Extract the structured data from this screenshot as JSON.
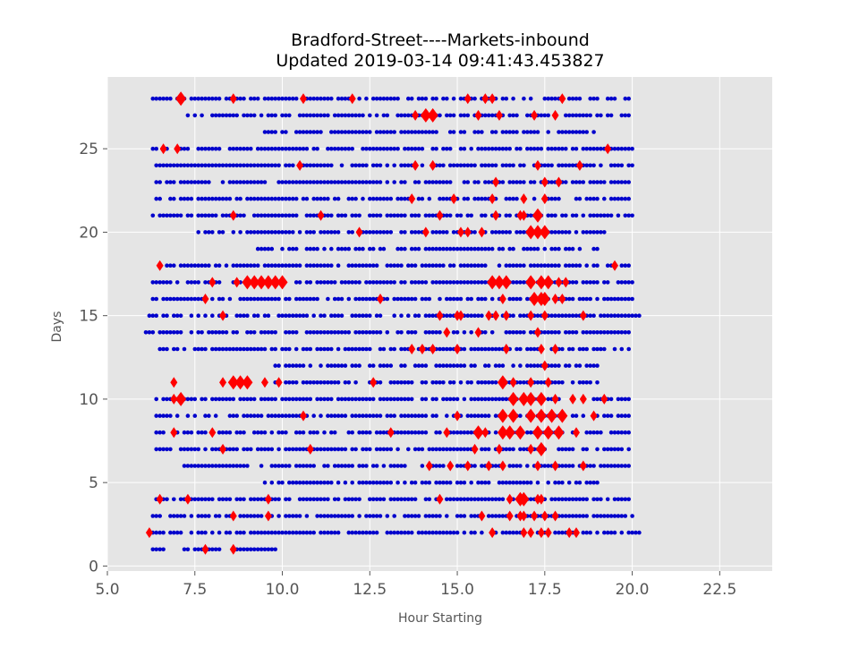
{
  "chart_data": {
    "type": "scatter",
    "title": "Bradford-Street----Markets-inbound",
    "subtitle": "Updated 2019-03-14 09:41:43.453827",
    "xlabel": "Hour Starting",
    "ylabel": "Days",
    "xlim": [
      5.0,
      24.0
    ],
    "ylim": [
      -0.3,
      29.3
    ],
    "xticks": [
      "5.0",
      "7.5",
      "10.0",
      "12.5",
      "15.0",
      "17.5",
      "20.0",
      "22.5"
    ],
    "yticks": [
      "0",
      "5",
      "10",
      "15",
      "20",
      "25"
    ],
    "grid": true,
    "background": "#e5e5e5",
    "colors": {
      "normal": "#0000cc",
      "highlight": "#ff0000"
    },
    "series": [
      {
        "marker": "circle",
        "color": "#0000cc",
        "rows": [
          {
            "day": 28,
            "start": 6.3,
            "end": 19.9
          },
          {
            "day": 27,
            "start": 7.3,
            "end": 19.9
          },
          {
            "day": 26,
            "start": 9.5,
            "end": 18.9
          },
          {
            "day": 25,
            "start": 6.3,
            "end": 20.0
          },
          {
            "day": 24,
            "start": 6.4,
            "end": 20.0
          },
          {
            "day": 23,
            "start": 6.4,
            "end": 19.9
          },
          {
            "day": 22,
            "start": 6.4,
            "end": 19.9
          },
          {
            "day": 21,
            "start": 6.3,
            "end": 20.0
          },
          {
            "day": 20,
            "start": 7.6,
            "end": 19.2
          },
          {
            "day": 19,
            "start": 9.3,
            "end": 19.0
          },
          {
            "day": 18,
            "start": 6.5,
            "end": 19.9
          },
          {
            "day": 17,
            "start": 6.3,
            "end": 20.0
          },
          {
            "day": 16,
            "start": 6.3,
            "end": 20.0
          },
          {
            "day": 15,
            "start": 6.2,
            "end": 20.2
          },
          {
            "day": 14,
            "start": 6.1,
            "end": 19.9
          },
          {
            "day": 13,
            "start": 6.5,
            "end": 19.9
          },
          {
            "day": 12,
            "start": 9.8,
            "end": 19.0
          },
          {
            "day": 11,
            "start": 9.8,
            "end": 19.0
          },
          {
            "day": 10,
            "start": 6.4,
            "end": 19.9
          },
          {
            "day": 9,
            "start": 6.4,
            "end": 19.9
          },
          {
            "day": 8,
            "start": 6.4,
            "end": 19.9
          },
          {
            "day": 7,
            "start": 6.4,
            "end": 19.9
          },
          {
            "day": 6,
            "start": 7.2,
            "end": 19.9
          },
          {
            "day": 5,
            "start": 9.5,
            "end": 19.0
          },
          {
            "day": 4,
            "start": 6.4,
            "end": 19.9
          },
          {
            "day": 3,
            "start": 6.3,
            "end": 20.0
          },
          {
            "day": 2,
            "start": 6.2,
            "end": 20.2
          },
          {
            "day": 1,
            "start": 6.3,
            "end": 9.8
          }
        ]
      },
      {
        "marker": "diamond",
        "color": "#ff0000",
        "points": [
          [
            7.1,
            28,
            2
          ],
          [
            8.6,
            28,
            1
          ],
          [
            10.6,
            28,
            1
          ],
          [
            12.0,
            28,
            1
          ],
          [
            15.3,
            28,
            1
          ],
          [
            15.8,
            28,
            1
          ],
          [
            16.0,
            28,
            1
          ],
          [
            18.0,
            28,
            1
          ],
          [
            13.8,
            27,
            1
          ],
          [
            14.1,
            27,
            2
          ],
          [
            14.3,
            27,
            2
          ],
          [
            15.6,
            27,
            1
          ],
          [
            16.2,
            27,
            1
          ],
          [
            17.2,
            27,
            1
          ],
          [
            17.8,
            27,
            1
          ],
          [
            6.6,
            25,
            1
          ],
          [
            7.0,
            25,
            1
          ],
          [
            19.3,
            25,
            1
          ],
          [
            10.5,
            24,
            1
          ],
          [
            13.8,
            24,
            1
          ],
          [
            14.3,
            24,
            1
          ],
          [
            17.3,
            24,
            1
          ],
          [
            18.5,
            24,
            1
          ],
          [
            16.1,
            23,
            1
          ],
          [
            17.5,
            23,
            1
          ],
          [
            17.9,
            23,
            1
          ],
          [
            13.7,
            22,
            1
          ],
          [
            14.9,
            22,
            1
          ],
          [
            16.0,
            22,
            1
          ],
          [
            16.9,
            22,
            1
          ],
          [
            17.5,
            22,
            1
          ],
          [
            8.6,
            21,
            1
          ],
          [
            11.1,
            21,
            1
          ],
          [
            14.5,
            21,
            1
          ],
          [
            16.1,
            21,
            1
          ],
          [
            16.8,
            21,
            1
          ],
          [
            16.9,
            21,
            1
          ],
          [
            17.3,
            21,
            2
          ],
          [
            12.2,
            20,
            1
          ],
          [
            14.1,
            20,
            1
          ],
          [
            15.1,
            20,
            1
          ],
          [
            15.3,
            20,
            1
          ],
          [
            15.7,
            20,
            1
          ],
          [
            17.1,
            20,
            2
          ],
          [
            17.3,
            20,
            2
          ],
          [
            17.5,
            20,
            2
          ],
          [
            6.5,
            18,
            1
          ],
          [
            19.5,
            18,
            1
          ],
          [
            8.0,
            17,
            1
          ],
          [
            8.7,
            17,
            1
          ],
          [
            9.0,
            17,
            2
          ],
          [
            9.2,
            17,
            2
          ],
          [
            9.4,
            17,
            2
          ],
          [
            9.6,
            17,
            2
          ],
          [
            9.8,
            17,
            2
          ],
          [
            10.0,
            17,
            2
          ],
          [
            16.0,
            17,
            2
          ],
          [
            16.2,
            17,
            2
          ],
          [
            16.4,
            17,
            2
          ],
          [
            17.1,
            17,
            2
          ],
          [
            17.4,
            17,
            2
          ],
          [
            17.6,
            17,
            2
          ],
          [
            17.9,
            17,
            1
          ],
          [
            18.1,
            17,
            1
          ],
          [
            7.8,
            16,
            1
          ],
          [
            12.8,
            16,
            1
          ],
          [
            16.3,
            16,
            1
          ],
          [
            17.2,
            16,
            2
          ],
          [
            17.4,
            16,
            2
          ],
          [
            17.5,
            16,
            2
          ],
          [
            17.8,
            16,
            1
          ],
          [
            18.0,
            16,
            1
          ],
          [
            8.3,
            15,
            1
          ],
          [
            14.5,
            15,
            1
          ],
          [
            15.0,
            15,
            1
          ],
          [
            15.1,
            15,
            1
          ],
          [
            15.9,
            15,
            1
          ],
          [
            16.1,
            15,
            1
          ],
          [
            16.4,
            15,
            1
          ],
          [
            17.1,
            15,
            1
          ],
          [
            17.5,
            15,
            1
          ],
          [
            18.6,
            15,
            1
          ],
          [
            14.7,
            14,
            1
          ],
          [
            15.6,
            14,
            1
          ],
          [
            17.3,
            14,
            1
          ],
          [
            13.7,
            13,
            1
          ],
          [
            14.0,
            13,
            1
          ],
          [
            14.3,
            13,
            1
          ],
          [
            15.0,
            13,
            1
          ],
          [
            16.4,
            13,
            1
          ],
          [
            17.4,
            13,
            1
          ],
          [
            17.8,
            13,
            1
          ],
          [
            17.5,
            12,
            1
          ],
          [
            6.9,
            11,
            1
          ],
          [
            8.3,
            11,
            1
          ],
          [
            8.6,
            11,
            2
          ],
          [
            8.8,
            11,
            2
          ],
          [
            9.0,
            11,
            2
          ],
          [
            9.5,
            11,
            1
          ],
          [
            9.9,
            11,
            1
          ],
          [
            12.6,
            11,
            1
          ],
          [
            16.3,
            11,
            2
          ],
          [
            16.6,
            11,
            1
          ],
          [
            17.1,
            11,
            1
          ],
          [
            17.6,
            11,
            1
          ],
          [
            6.9,
            10,
            1
          ],
          [
            7.1,
            10,
            2
          ],
          [
            16.6,
            10,
            2
          ],
          [
            16.9,
            10,
            2
          ],
          [
            17.1,
            10,
            2
          ],
          [
            17.4,
            10,
            2
          ],
          [
            17.8,
            10,
            1
          ],
          [
            18.3,
            10,
            1
          ],
          [
            18.6,
            10,
            1
          ],
          [
            19.2,
            10,
            1
          ],
          [
            10.6,
            9,
            1
          ],
          [
            15.0,
            9,
            1
          ],
          [
            16.3,
            9,
            2
          ],
          [
            16.6,
            9,
            2
          ],
          [
            17.1,
            9,
            2
          ],
          [
            17.4,
            9,
            2
          ],
          [
            17.7,
            9,
            2
          ],
          [
            18.0,
            9,
            2
          ],
          [
            18.9,
            9,
            1
          ],
          [
            6.9,
            8,
            1
          ],
          [
            8.0,
            8,
            1
          ],
          [
            13.1,
            8,
            1
          ],
          [
            14.7,
            8,
            1
          ],
          [
            15.6,
            8,
            2
          ],
          [
            15.8,
            8,
            1
          ],
          [
            16.3,
            8,
            2
          ],
          [
            16.5,
            8,
            2
          ],
          [
            16.8,
            8,
            2
          ],
          [
            17.3,
            8,
            2
          ],
          [
            17.6,
            8,
            2
          ],
          [
            17.9,
            8,
            2
          ],
          [
            18.4,
            8,
            1
          ],
          [
            8.3,
            7,
            1
          ],
          [
            10.8,
            7,
            1
          ],
          [
            15.5,
            7,
            1
          ],
          [
            16.2,
            7,
            1
          ],
          [
            17.1,
            7,
            1
          ],
          [
            17.4,
            7,
            2
          ],
          [
            14.2,
            6,
            1
          ],
          [
            14.8,
            6,
            1
          ],
          [
            15.3,
            6,
            1
          ],
          [
            15.9,
            6,
            1
          ],
          [
            16.3,
            6,
            1
          ],
          [
            17.3,
            6,
            1
          ],
          [
            17.8,
            6,
            1
          ],
          [
            18.6,
            6,
            1
          ],
          [
            6.5,
            4,
            1
          ],
          [
            7.3,
            4,
            1
          ],
          [
            9.6,
            4,
            1
          ],
          [
            14.5,
            4,
            1
          ],
          [
            16.5,
            4,
            1
          ],
          [
            16.8,
            4,
            2
          ],
          [
            16.9,
            4,
            2
          ],
          [
            17.3,
            4,
            1
          ],
          [
            17.4,
            4,
            1
          ],
          [
            8.6,
            3,
            1
          ],
          [
            9.6,
            3,
            1
          ],
          [
            15.7,
            3,
            1
          ],
          [
            16.5,
            3,
            1
          ],
          [
            16.8,
            3,
            1
          ],
          [
            16.9,
            3,
            1
          ],
          [
            17.2,
            3,
            1
          ],
          [
            17.5,
            3,
            1
          ],
          [
            17.8,
            3,
            1
          ],
          [
            6.2,
            2,
            1
          ],
          [
            16.0,
            2,
            1
          ],
          [
            16.9,
            2,
            1
          ],
          [
            17.1,
            2,
            1
          ],
          [
            17.4,
            2,
            1
          ],
          [
            17.6,
            2,
            1
          ],
          [
            18.2,
            2,
            1
          ],
          [
            18.4,
            2,
            1
          ],
          [
            7.8,
            1,
            1
          ],
          [
            8.6,
            1,
            1
          ]
        ]
      }
    ]
  }
}
